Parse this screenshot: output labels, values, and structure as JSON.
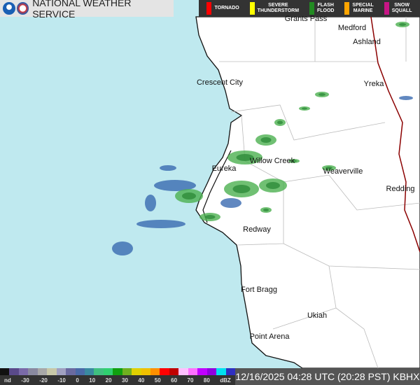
{
  "header": {
    "title": "NATIONAL WEATHER SERVICE",
    "logos": [
      "noaa-logo",
      "nws-logo"
    ]
  },
  "warnings": [
    {
      "label": "TORNADO",
      "color": "#ff0000"
    },
    {
      "label": "SEVERE\nTHUNDERSTORM",
      "color": "#ffff00"
    },
    {
      "label": "FLASH\nFLOOD",
      "color": "#228b22"
    },
    {
      "label": "SPECIAL\nMARINE",
      "color": "#ffa500"
    },
    {
      "label": "SNOW\nSQUALL",
      "color": "#c71585"
    }
  ],
  "map": {
    "ocean_color": "#bfe9ef",
    "land_color": "#ffffff",
    "state_line_color": "#8b0000",
    "radar_colors": [
      "#3a6ab0",
      "#4cb050",
      "#2e8b3a",
      "#7fd67f"
    ]
  },
  "cities": [
    "Grants Pass",
    "Medford",
    "Ashland",
    "Crescent City",
    "Yreka",
    "Eureka",
    "Willow Creek",
    "Weaverville",
    "Redding",
    "Redway",
    "Fort Bragg",
    "Ukiah",
    "Point Arena"
  ],
  "legend": {
    "ticks": [
      "nd",
      "-30",
      "-20",
      "-10",
      "0",
      "10",
      "20",
      "30",
      "40",
      "50",
      "60",
      "70",
      "80",
      "dBZ"
    ],
    "colors": [
      "#111111",
      "#5a4a8a",
      "#7a6aa8",
      "#8a8aa0",
      "#a8a8a8",
      "#c8c8a8",
      "#a0a0c0",
      "#6a6aa0",
      "#4a6aa8",
      "#3a8aa0",
      "#40c080",
      "#30d070",
      "#10a010",
      "#70b020",
      "#e0d000",
      "#f0c000",
      "#ff9000",
      "#ff0000",
      "#c00000",
      "#ffc0ff",
      "#ff70ff",
      "#c000ff",
      "#9000e0",
      "#00e0f0",
      "#3030c0"
    ]
  },
  "timestamp": "12/16/2025 04:28 UTC (20:28 PST) KBHX"
}
